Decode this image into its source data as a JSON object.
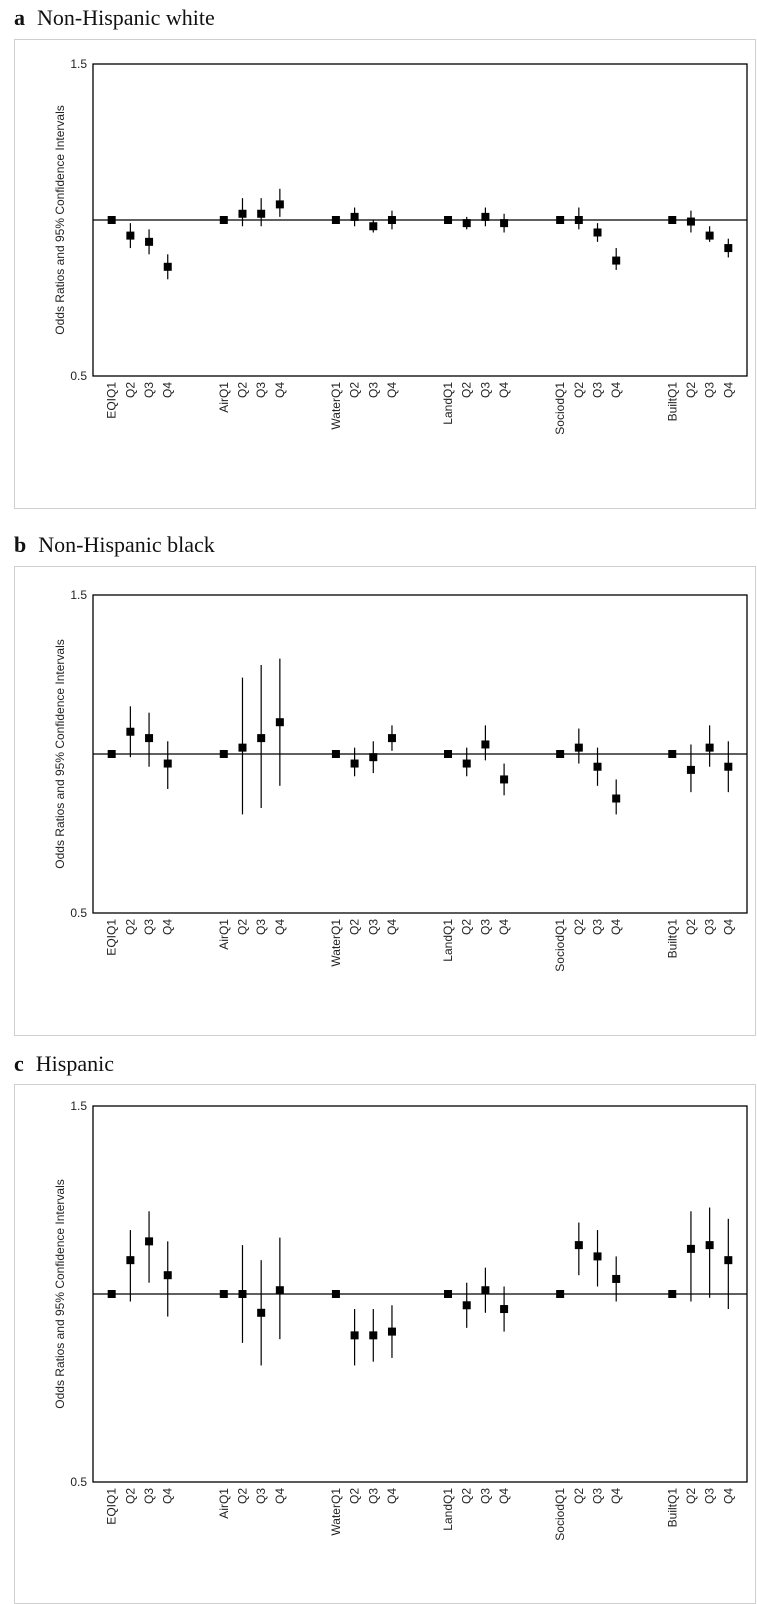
{
  "chart_data": [
    {
      "type": "scatter",
      "panel_letter": "a",
      "title": "Non-Hispanic white",
      "ylabel": "Odds Ratios and 95% Confidence Intervals",
      "ylim": [
        0.5,
        1.5
      ],
      "ytick_labels": [
        "1.5",
        "0.5"
      ],
      "reference_line": 1.0,
      "categories": [
        "EQIQ1",
        "Q2",
        "Q3",
        "Q4",
        "AirQ1",
        "Q2",
        "Q3",
        "Q4",
        "WaterQ1",
        "Q2",
        "Q3",
        "Q4",
        "LandQ1",
        "Q2",
        "Q3",
        "Q4",
        "SociodQ1",
        "Q2",
        "Q3",
        "Q4",
        "BuiltQ1",
        "Q2",
        "Q3",
        "Q4"
      ],
      "x": [
        1,
        2,
        3,
        4,
        7,
        8,
        9,
        10,
        13,
        14,
        15,
        16,
        19,
        20,
        21,
        22,
        25,
        26,
        27,
        28,
        31,
        32,
        33,
        34
      ],
      "values": [
        1.0,
        0.95,
        0.93,
        0.85,
        1.0,
        1.02,
        1.02,
        1.05,
        1.0,
        1.01,
        0.98,
        1.0,
        1.0,
        0.99,
        1.01,
        0.99,
        1.0,
        1.0,
        0.96,
        0.87,
        1.0,
        0.995,
        0.95,
        0.91
      ],
      "ci_low": [
        1.0,
        0.91,
        0.89,
        0.81,
        1.0,
        0.98,
        0.98,
        1.01,
        1.0,
        0.98,
        0.96,
        0.97,
        1.0,
        0.97,
        0.98,
        0.96,
        1.0,
        0.97,
        0.93,
        0.84,
        1.0,
        0.96,
        0.93,
        0.88
      ],
      "ci_high": [
        1.0,
        0.99,
        0.97,
        0.89,
        1.0,
        1.07,
        1.07,
        1.1,
        1.0,
        1.04,
        1.0,
        1.03,
        1.0,
        1.01,
        1.04,
        1.02,
        1.0,
        1.04,
        0.99,
        0.91,
        1.0,
        1.03,
        0.98,
        0.94
      ]
    },
    {
      "type": "scatter",
      "panel_letter": "b",
      "title": "Non-Hispanic black",
      "ylabel": "Odds Ratios and 95% Confidence Intervals",
      "ylim": [
        0.5,
        1.5
      ],
      "ytick_labels": [
        "1.5",
        "0.5"
      ],
      "reference_line": 1.0,
      "categories": [
        "EQIQ1",
        "Q2",
        "Q3",
        "Q4",
        "AirQ1",
        "Q2",
        "Q3",
        "Q4",
        "WaterQ1",
        "Q2",
        "Q3",
        "Q4",
        "LandQ1",
        "Q2",
        "Q3",
        "Q4",
        "SociodQ1",
        "Q2",
        "Q3",
        "Q4",
        "BuiltQ1",
        "Q2",
        "Q3",
        "Q4"
      ],
      "x": [
        1,
        2,
        3,
        4,
        7,
        8,
        9,
        10,
        13,
        14,
        15,
        16,
        19,
        20,
        21,
        22,
        25,
        26,
        27,
        28,
        31,
        32,
        33,
        34
      ],
      "values": [
        1.0,
        1.07,
        1.05,
        0.97,
        1.0,
        1.02,
        1.05,
        1.1,
        1.0,
        0.97,
        0.99,
        1.05,
        1.0,
        0.97,
        1.03,
        0.92,
        1.0,
        1.02,
        0.96,
        0.86,
        1.0,
        0.95,
        1.02,
        0.96
      ],
      "ci_low": [
        1.0,
        0.99,
        0.96,
        0.89,
        1.0,
        0.81,
        0.83,
        0.9,
        1.0,
        0.93,
        0.94,
        1.01,
        1.0,
        0.93,
        0.98,
        0.87,
        1.0,
        0.97,
        0.9,
        0.81,
        1.0,
        0.88,
        0.96,
        0.88
      ],
      "ci_high": [
        1.0,
        1.15,
        1.13,
        1.04,
        1.0,
        1.24,
        1.28,
        1.3,
        1.0,
        1.02,
        1.04,
        1.09,
        1.0,
        1.02,
        1.09,
        0.97,
        1.0,
        1.08,
        1.02,
        0.92,
        1.0,
        1.03,
        1.09,
        1.04
      ]
    },
    {
      "type": "scatter",
      "panel_letter": "c",
      "title": "Hispanic",
      "ylabel": "Odds Ratios and 95% Confidence Intervals",
      "ylim": [
        0.5,
        1.5
      ],
      "ytick_labels": [
        "1.5",
        "0.5"
      ],
      "reference_line": 1.0,
      "categories": [
        "EQIQ1",
        "Q2",
        "Q3",
        "Q4",
        "AirQ1",
        "Q2",
        "Q3",
        "Q4",
        "WaterQ1",
        "Q2",
        "Q3",
        "Q4",
        "LandQ1",
        "Q2",
        "Q3",
        "Q4",
        "SociodQ1",
        "Q2",
        "Q3",
        "Q4",
        "BuiltQ1",
        "Q2",
        "Q3",
        "Q4"
      ],
      "x": [
        1,
        2,
        3,
        4,
        7,
        8,
        9,
        10,
        13,
        14,
        15,
        16,
        19,
        20,
        21,
        22,
        25,
        26,
        27,
        28,
        31,
        32,
        33,
        34
      ],
      "values": [
        1.0,
        1.09,
        1.14,
        1.05,
        1.0,
        1.0,
        0.95,
        1.01,
        1.0,
        0.89,
        0.89,
        0.9,
        1.0,
        0.97,
        1.01,
        0.96,
        1.0,
        1.13,
        1.1,
        1.04,
        1.0,
        1.12,
        1.13,
        1.09
      ],
      "ci_low": [
        1.0,
        0.98,
        1.03,
        0.94,
        1.0,
        0.87,
        0.81,
        0.88,
        1.0,
        0.81,
        0.82,
        0.83,
        1.0,
        0.91,
        0.95,
        0.9,
        1.0,
        1.05,
        1.02,
        0.98,
        1.0,
        0.98,
        0.99,
        0.96
      ],
      "ci_high": [
        1.0,
        1.17,
        1.22,
        1.14,
        1.0,
        1.13,
        1.09,
        1.15,
        1.0,
        0.96,
        0.96,
        0.97,
        1.0,
        1.03,
        1.07,
        1.02,
        1.0,
        1.19,
        1.17,
        1.1,
        1.0,
        1.22,
        1.23,
        1.2
      ]
    }
  ]
}
